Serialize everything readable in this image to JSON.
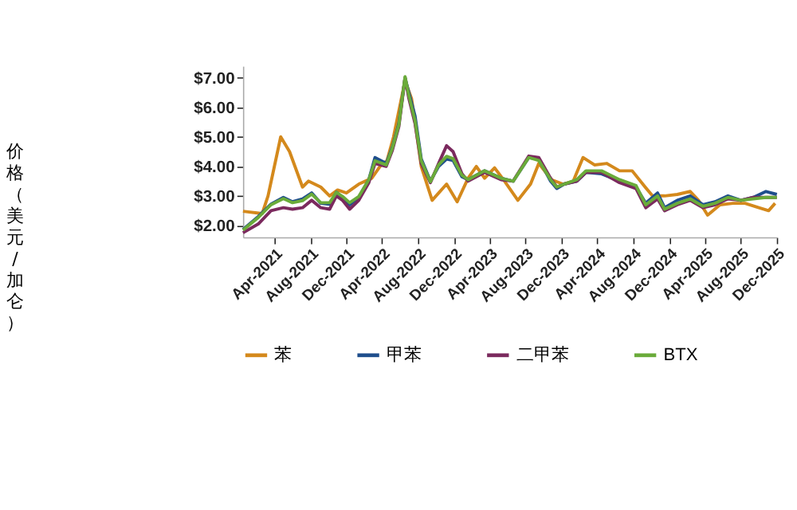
{
  "chart_data": {
    "type": "line",
    "ylabel": "价格（美元/加仑）",
    "xlim": [
      "2020-12-15",
      "2025-12-01"
    ],
    "ylim": [
      1.6,
      7.4
    ],
    "yticks": [
      {
        "value": 2,
        "label": "$2.00"
      },
      {
        "value": 3,
        "label": "$3.00"
      },
      {
        "value": 4,
        "label": "$4.00"
      },
      {
        "value": 5,
        "label": "$5.00"
      },
      {
        "value": 6,
        "label": "$6.00"
      },
      {
        "value": 7,
        "label": "$7.00"
      }
    ],
    "xticks": [
      {
        "value": "2021-04-01",
        "label": "Apr-2021"
      },
      {
        "value": "2021-08-01",
        "label": "Aug-2021"
      },
      {
        "value": "2021-12-01",
        "label": "Dec-2021"
      },
      {
        "value": "2022-04-01",
        "label": "Apr-2022"
      },
      {
        "value": "2022-08-01",
        "label": "Aug-2022"
      },
      {
        "value": "2022-12-01",
        "label": "Dec-2022"
      },
      {
        "value": "2023-04-01",
        "label": "Apr-2023"
      },
      {
        "value": "2023-08-01",
        "label": "Aug-2023"
      },
      {
        "value": "2023-12-01",
        "label": "Dec-2023"
      },
      {
        "value": "2024-04-01",
        "label": "Apr-2024"
      },
      {
        "value": "2024-08-01",
        "label": "Aug-2024"
      },
      {
        "value": "2024-12-01",
        "label": "Dec-2024"
      },
      {
        "value": "2025-04-01",
        "label": "Apr-2025"
      },
      {
        "value": "2025-08-01",
        "label": "Aug-2025"
      },
      {
        "value": "2025-12-01",
        "label": "Dec-2025"
      }
    ],
    "legend": "bottom",
    "series": [
      {
        "name": "苯",
        "color": "#d4891c",
        "x": [
          "2020-12-15",
          "2021-02-18",
          "2021-03-10",
          "2021-04-22",
          "2021-05-22",
          "2021-07-05",
          "2021-07-25",
          "2021-09-05",
          "2021-10-05",
          "2021-11-01",
          "2021-12-01",
          "2022-01-12",
          "2022-02-25",
          "2022-03-25",
          "2022-04-18",
          "2022-05-10",
          "2022-06-18",
          "2022-07-10",
          "2022-07-22",
          "2022-08-12",
          "2022-09-18",
          "2022-11-06",
          "2022-12-12",
          "2023-01-18",
          "2023-02-15",
          "2023-03-15",
          "2023-04-18",
          "2023-05-18",
          "2023-07-06",
          "2023-08-18",
          "2023-09-15",
          "2023-10-28",
          "2023-12-06",
          "2024-01-10",
          "2024-02-12",
          "2024-03-22",
          "2024-05-03",
          "2024-06-15",
          "2024-07-28",
          "2024-09-10",
          "2024-10-05",
          "2024-11-15",
          "2024-12-28",
          "2025-02-10",
          "2025-03-10",
          "2025-04-10",
          "2025-05-22",
          "2025-07-05",
          "2025-08-15",
          "2025-10-01",
          "2025-11-03",
          "2025-11-25"
        ],
        "values": [
          2.48,
          2.4,
          3.0,
          5.0,
          4.5,
          3.3,
          3.5,
          3.3,
          3.0,
          3.2,
          3.1,
          3.4,
          3.6,
          4.0,
          4.2,
          5.0,
          6.9,
          6.3,
          5.5,
          4.0,
          2.85,
          3.4,
          2.8,
          3.6,
          4.0,
          3.6,
          3.95,
          3.55,
          2.85,
          3.4,
          4.1,
          3.55,
          3.4,
          3.5,
          4.3,
          4.05,
          4.1,
          3.85,
          3.85,
          3.3,
          3.0,
          3.0,
          3.05,
          3.15,
          2.85,
          2.35,
          2.7,
          2.75,
          2.75,
          2.6,
          2.5,
          2.75
        ]
      },
      {
        "name": "甲苯",
        "color": "#1f4e8c",
        "values": [
          1.86,
          2.3,
          2.72,
          2.95,
          2.8,
          2.9,
          3.1,
          2.75,
          2.72,
          3.12,
          2.95,
          2.7,
          2.95,
          3.55,
          4.3,
          4.1,
          4.65,
          5.45,
          7.0,
          6.5,
          5.7,
          4.25,
          3.5,
          4.0,
          4.25,
          4.2,
          3.65,
          3.55,
          3.85,
          3.6,
          3.5,
          4.3,
          4.25,
          3.5,
          3.25,
          3.4,
          3.5,
          3.8,
          3.75,
          3.5,
          3.3,
          2.75,
          3.1,
          2.6,
          2.85,
          3.0,
          2.7,
          2.8,
          3.0,
          2.85,
          2.95,
          3.15,
          3.05
        ]
      },
      {
        "name": "二甲苯",
        "color": "#7b2a5e",
        "values": [
          1.75,
          2.05,
          2.5,
          2.6,
          2.55,
          2.6,
          2.85,
          2.6,
          2.55,
          3.0,
          2.85,
          2.55,
          2.85,
          3.45,
          4.1,
          4.0,
          4.55,
          5.35,
          7.0,
          6.3,
          5.45,
          4.1,
          3.45,
          4.1,
          4.7,
          4.5,
          3.75,
          3.5,
          3.8,
          3.55,
          3.5,
          4.35,
          4.3,
          3.6,
          3.3,
          3.4,
          3.5,
          3.8,
          3.8,
          3.45,
          3.25,
          2.6,
          2.9,
          2.5,
          2.7,
          2.85,
          2.6,
          2.7,
          2.9,
          2.85,
          2.95,
          2.95,
          2.95
        ]
      },
      {
        "name": "BTX",
        "color": "#6aab3a",
        "values": [
          1.84,
          2.27,
          2.7,
          2.91,
          2.77,
          2.84,
          3.06,
          2.77,
          2.77,
          3.12,
          2.98,
          2.77,
          2.98,
          3.55,
          4.19,
          4.05,
          4.62,
          5.41,
          7.04,
          6.4,
          5.55,
          4.19,
          3.48,
          4.05,
          4.34,
          4.26,
          3.7,
          3.55,
          3.85,
          3.6,
          3.5,
          4.3,
          4.2,
          3.55,
          3.3,
          3.4,
          3.55,
          3.85,
          3.85,
          3.55,
          3.35,
          2.7,
          3.0,
          2.55,
          2.75,
          2.9,
          2.65,
          2.75,
          2.95,
          2.85,
          2.9,
          2.95,
          2.95
        ]
      }
    ],
    "x": [
      "2020-12-15",
      "2021-02-05",
      "2021-03-20",
      "2021-05-01",
      "2021-06-01",
      "2021-07-05",
      "2021-08-05",
      "2021-09-05",
      "2021-10-05",
      "2021-10-28",
      "2021-11-18",
      "2021-12-12",
      "2022-01-12",
      "2022-02-15",
      "2022-03-08",
      "2022-04-15",
      "2022-05-06",
      "2022-05-28",
      "2022-06-18",
      "2022-07-01",
      "2022-07-22",
      "2022-08-12",
      "2022-09-12",
      "2022-10-10",
      "2022-11-06",
      "2022-11-28",
      "2022-12-28",
      "2023-01-18",
      "2023-03-15",
      "2023-05-10",
      "2023-06-20",
      "2023-08-12",
      "2023-09-15",
      "2023-10-25",
      "2023-11-15",
      "2023-12-10",
      "2024-01-22",
      "2024-02-22",
      "2024-04-15",
      "2024-06-15",
      "2024-08-10",
      "2024-09-12",
      "2024-10-22",
      "2024-11-15",
      "2024-12-28",
      "2025-02-10",
      "2025-03-25",
      "2025-05-05",
      "2025-06-18",
      "2025-08-01",
      "2025-09-12",
      "2025-10-25",
      "2025-12-01"
    ]
  }
}
